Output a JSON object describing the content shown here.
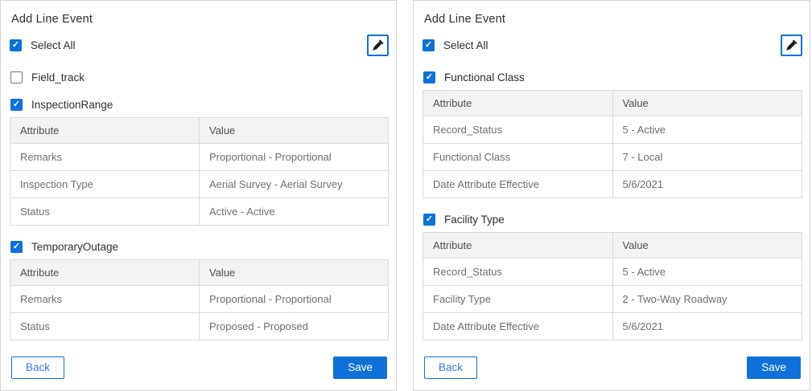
{
  "colors": {
    "primary": "#0f70d9",
    "header_bg": "#f3f3f3",
    "table_border": "#d9d9d9",
    "table_text": "#6e6e6e"
  },
  "icons": {
    "check": "✓",
    "eyedropper": "eyedropper-icon"
  },
  "panels": [
    {
      "title": "Add Line Event",
      "select_all_label": "Select All",
      "select_all_checked": true,
      "sections": [
        {
          "label": "Field_track",
          "checked": false
        },
        {
          "label": "InspectionRange",
          "checked": true,
          "table": {
            "headers": [
              "Attribute",
              "Value"
            ],
            "rows": [
              [
                "Remarks",
                "Proportional - Proportional"
              ],
              [
                "Inspection Type",
                "Aerial Survey - Aerial Survey"
              ],
              [
                "Status",
                "Active - Active"
              ]
            ]
          }
        },
        {
          "label": "TemporaryOutage",
          "checked": true,
          "table": {
            "headers": [
              "Attribute",
              "Value"
            ],
            "rows": [
              [
                "Remarks",
                "Proportional - Proportional"
              ],
              [
                "Status",
                "Proposed - Proposed"
              ]
            ]
          }
        }
      ],
      "back_label": "Back",
      "save_label": "Save"
    },
    {
      "title": "Add Line Event",
      "select_all_label": "Select All",
      "select_all_checked": true,
      "sections": [
        {
          "label": "Functional Class",
          "checked": true,
          "table": {
            "headers": [
              "Attribute",
              "Value"
            ],
            "rows": [
              [
                "Record_Status",
                "5 - Active"
              ],
              [
                "Functional Class",
                "7 - Local"
              ],
              [
                "Date Attribute Effective",
                "5/6/2021"
              ]
            ]
          }
        },
        {
          "label": "Facility Type",
          "checked": true,
          "table": {
            "headers": [
              "Attribute",
              "Value"
            ],
            "rows": [
              [
                "Record_Status",
                "5 - Active"
              ],
              [
                "Facility Type",
                "2 - Two-Way Roadway"
              ],
              [
                "Date Attribute Effective",
                "5/6/2021"
              ]
            ]
          }
        }
      ],
      "back_label": "Back",
      "save_label": "Save"
    }
  ]
}
